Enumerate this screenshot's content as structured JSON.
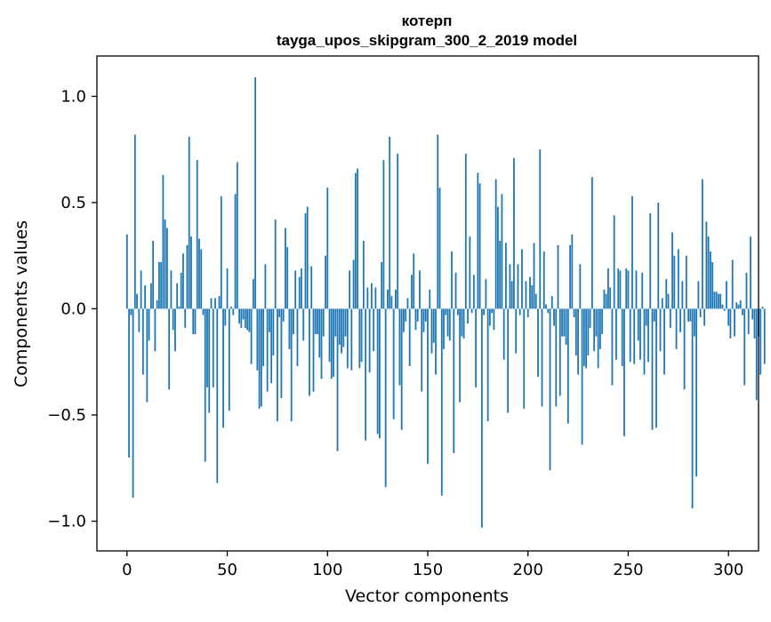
{
  "chart_data": {
    "type": "bar",
    "title": "котерп",
    "subtitle": "tayga_upos_skipgram_300_2_2019 model",
    "xlabel": "Vector components",
    "ylabel": "Components values",
    "xlim": [
      -15,
      315
    ],
    "ylim": [
      -1.14,
      1.19
    ],
    "x_ticks": [
      0,
      50,
      100,
      150,
      200,
      250,
      300
    ],
    "y_ticks": [
      -1.0,
      -0.5,
      0.0,
      0.5,
      1.0
    ],
    "x_tick_labels": [
      "0",
      "50",
      "100",
      "150",
      "200",
      "250",
      "300"
    ],
    "y_tick_labels": [
      "−1.0",
      "−0.5",
      "0.0",
      "0.5",
      "1.0"
    ],
    "bar_color": "#1f77b4",
    "grid": false,
    "legend": false,
    "values": [
      0.35,
      -0.7,
      -0.03,
      -0.89,
      0.82,
      0.07,
      -0.11,
      0.18,
      -0.31,
      0.11,
      -0.44,
      -0.15,
      0.12,
      0.32,
      -0.2,
      0.04,
      0.22,
      0.22,
      0.63,
      0.42,
      0.38,
      -0.38,
      0.18,
      -0.1,
      -0.2,
      0.12,
      0.01,
      0.17,
      0.26,
      -0.09,
      0.3,
      0.81,
      0.34,
      -0.12,
      -0.12,
      0.7,
      0.33,
      0.28,
      -0.03,
      -0.72,
      -0.37,
      -0.49,
      0.05,
      -0.37,
      0.05,
      -0.82,
      0.06,
      0.53,
      -0.56,
      -0.08,
      0.19,
      -0.48,
      0.01,
      -0.03,
      0.54,
      0.69,
      -0.07,
      -0.09,
      -0.05,
      -0.09,
      -0.1,
      -0.11,
      -0.26,
      0.14,
      1.09,
      -0.29,
      -0.47,
      -0.46,
      -0.27,
      0.21,
      -0.39,
      -0.11,
      -0.35,
      -0.22,
      0.42,
      -0.53,
      -0.04,
      -0.42,
      -0.06,
      0.38,
      0.29,
      -0.19,
      -0.53,
      -0.12,
      0.18,
      -0.27,
      0.15,
      0.19,
      -0.15,
      0.45,
      0.48,
      -0.41,
      0.2,
      -0.39,
      -0.12,
      -0.12,
      -0.23,
      -0.33,
      -0.13,
      0.25,
      0.57,
      -0.25,
      -0.33,
      -0.32,
      -0.13,
      -0.67,
      -0.17,
      -0.21,
      -0.18,
      -0.13,
      -0.28,
      0.18,
      -0.29,
      0.23,
      0.64,
      0.66,
      -0.28,
      -0.25,
      0.32,
      -0.62,
      0.1,
      -0.3,
      0.12,
      -0.2,
      0.1,
      -0.59,
      -0.61,
      0.22,
      0.7,
      -0.84,
      0.09,
      0.81,
      0.06,
      -0.52,
      0.09,
      0.73,
      -0.36,
      -0.57,
      -0.11,
      -0.06,
      0.05,
      -0.27,
      0.16,
      0.26,
      -0.1,
      -0.06,
      0.18,
      -0.39,
      -0.11,
      -0.06,
      -0.73,
      0.09,
      -0.21,
      -0.16,
      -0.31,
      0.82,
      0.57,
      -0.88,
      -0.19,
      -0.03,
      -0.13,
      -0.15,
      0.27,
      -0.68,
      0.17,
      -0.03,
      -0.44,
      -0.13,
      -0.14,
      0.73,
      -0.07,
      0.34,
      -0.02,
      0.16,
      -0.37,
      0.64,
      0.59,
      -1.03,
      -0.03,
      0.14,
      -0.53,
      -0.08,
      -0.02,
      -0.1,
      0.61,
      0.48,
      0.32,
      0.54,
      -0.24,
      0.31,
      -0.49,
      0.21,
      0.13,
      0.71,
      -0.21,
      0.21,
      -0.03,
      0.28,
      -0.47,
      0.13,
      -0.04,
      0.15,
      0.11,
      0.31,
      0.07,
      -0.32,
      0.75,
      -0.46,
      0.27,
      0.02,
      -0.02,
      -0.76,
      0.06,
      -0.08,
      -0.46,
      0.3,
      -0.41,
      -0.13,
      -0.13,
      -0.17,
      -0.54,
      0.3,
      0.35,
      -0.04,
      -0.22,
      -0.31,
      0.21,
      -0.64,
      -0.27,
      -0.28,
      -0.22,
      -0.09,
      0.62,
      -0.2,
      -0.13,
      -0.28,
      -0.19,
      -0.12,
      0.09,
      0.07,
      0.19,
      0.1,
      -0.36,
      0.44,
      -0.24,
      0.19,
      0.18,
      -0.27,
      -0.6,
      0.19,
      0.18,
      -0.25,
      0.53,
      -0.26,
      0.18,
      -0.15,
      -0.24,
      0.17,
      -0.31,
      -0.08,
      -0.25,
      0.45,
      -0.57,
      -0.06,
      -0.56,
      0.5,
      -0.2,
      0.05,
      -0.31,
      0.14,
      0.07,
      -0.09,
      0.36,
      0.25,
      -0.19,
      0.28,
      -0.11,
      0.13,
      -0.38,
      0.25,
      -0.06,
      -0.06,
      -0.94,
      -0.13,
      -0.79,
      0.13,
      -0.04,
      0.61,
      -0.08,
      0.41,
      0.34,
      0.27,
      0.22,
      0.08,
      0.08,
      0.07,
      0.07,
      0.02,
      -0.01,
      0.13,
      -0.08,
      -0.14,
      0.23,
      -0.13,
      0.03,
      0.02,
      0.04,
      -0.03,
      -0.36,
      0.17,
      -0.12,
      0.34,
      -0.05,
      -0.14,
      -0.43,
      -0.13,
      -0.31,
      0.01,
      -0.26
    ]
  }
}
